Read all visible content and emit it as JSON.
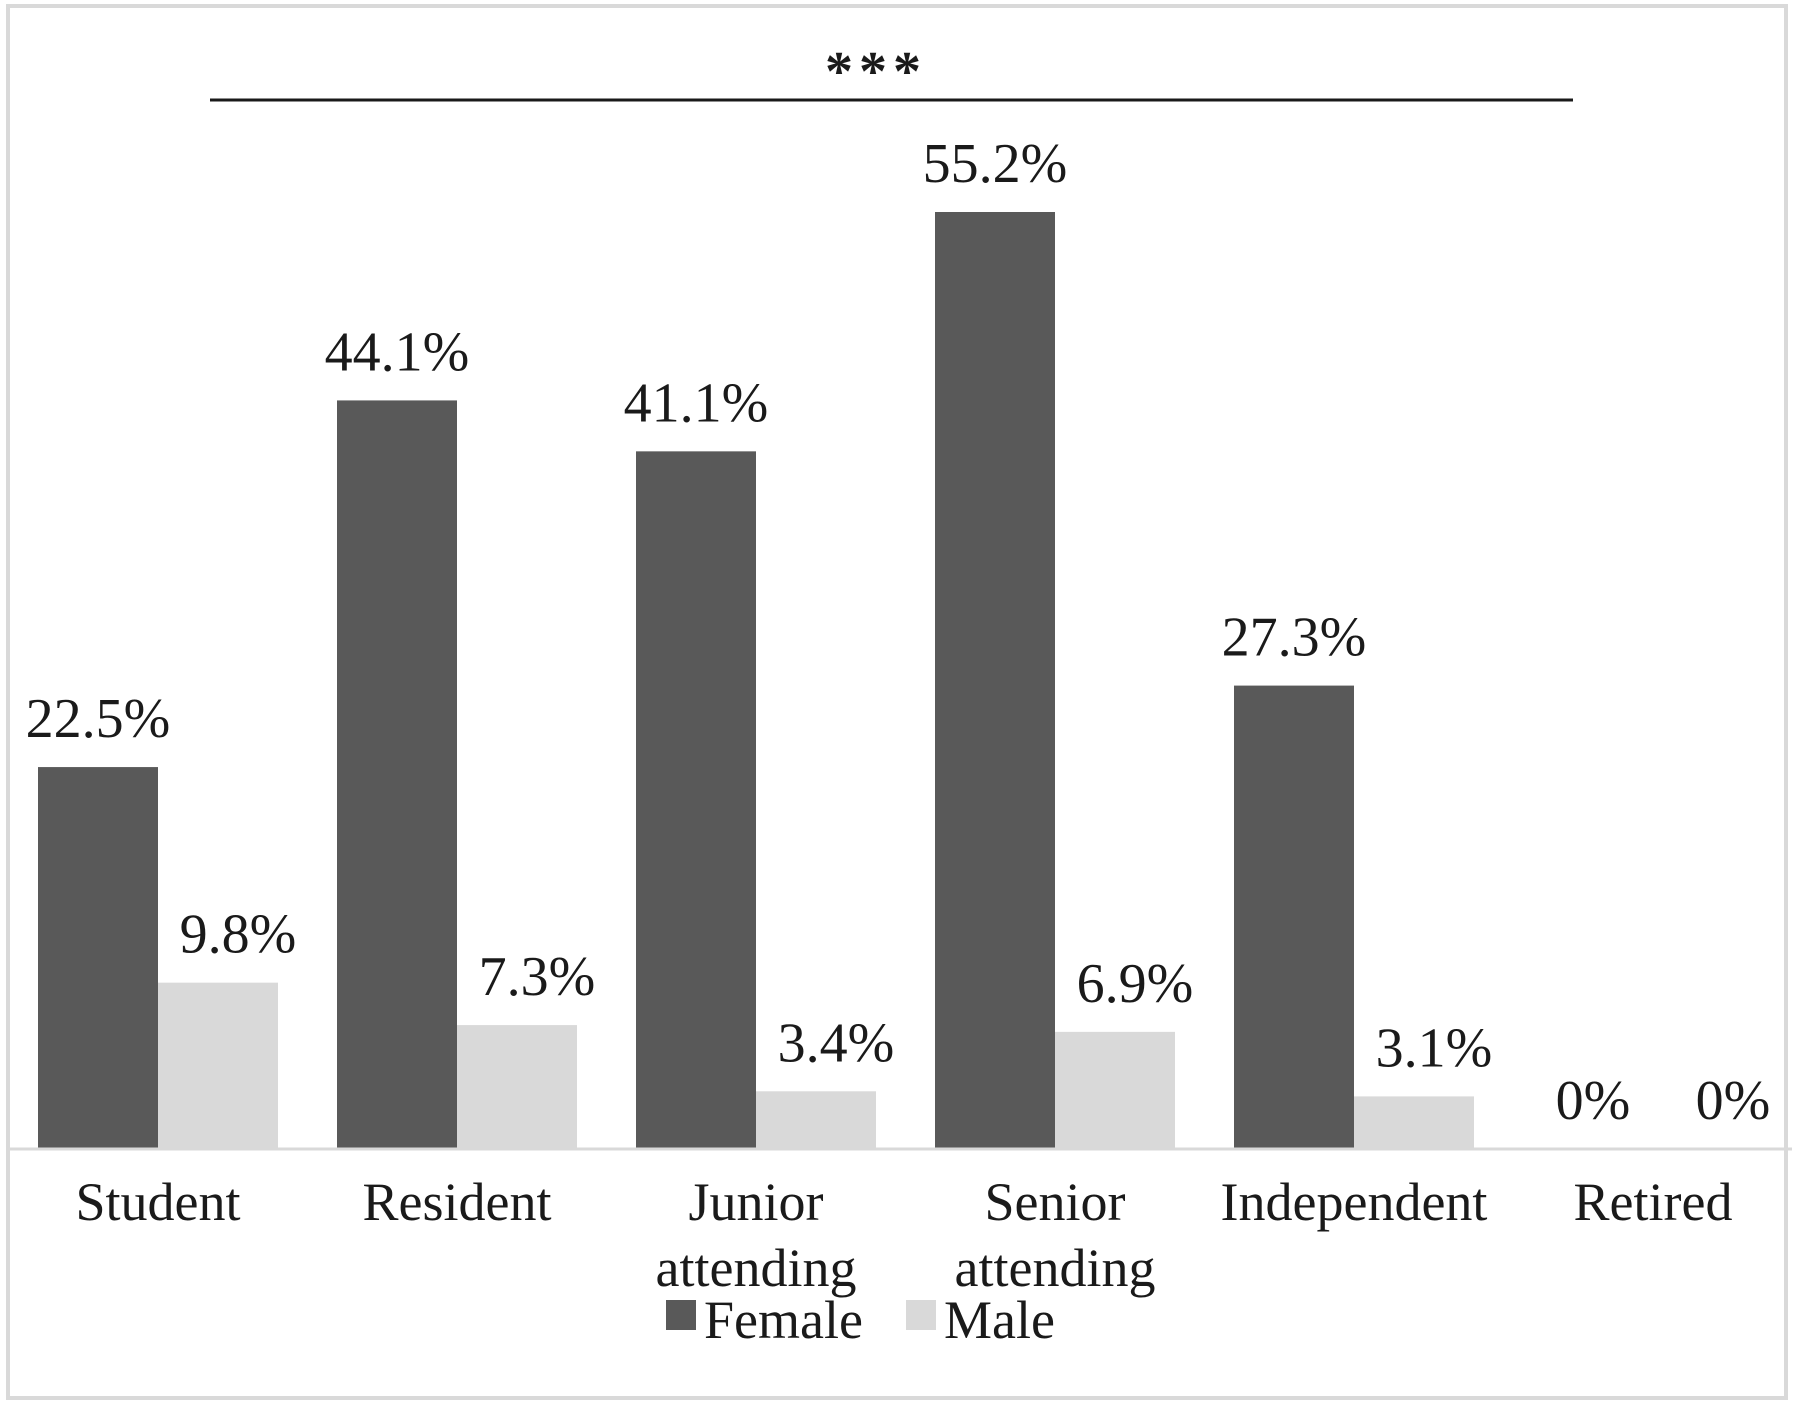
{
  "chart_data": {
    "type": "bar",
    "categories": [
      "Student",
      "Resident",
      "Junior attending",
      "Senior attending",
      "Independent",
      "Retired"
    ],
    "category_lines": [
      [
        "Student"
      ],
      [
        "Resident"
      ],
      [
        "Junior",
        "attending"
      ],
      [
        "Senior",
        "attending"
      ],
      [
        "Independent"
      ],
      [
        "Retired"
      ]
    ],
    "series": [
      {
        "name": "Female",
        "color": "#595959",
        "values": [
          22.5,
          44.1,
          41.1,
          55.2,
          27.3,
          0
        ],
        "labels": [
          "22.5%",
          "44.1%",
          "41.1%",
          "55.2%",
          "27.3%",
          "0%"
        ]
      },
      {
        "name": "Male",
        "color": "#d9d9d9",
        "values": [
          9.8,
          7.3,
          3.4,
          6.9,
          3.1,
          0
        ],
        "labels": [
          "9.8%",
          "7.3%",
          "3.4%",
          "6.9%",
          "3.1%",
          "0%"
        ]
      }
    ],
    "significance_label": "***",
    "title": "",
    "xlabel": "",
    "ylabel": "",
    "ylim": [
      0,
      55.2
    ],
    "grid": false,
    "legend_position": "bottom"
  }
}
